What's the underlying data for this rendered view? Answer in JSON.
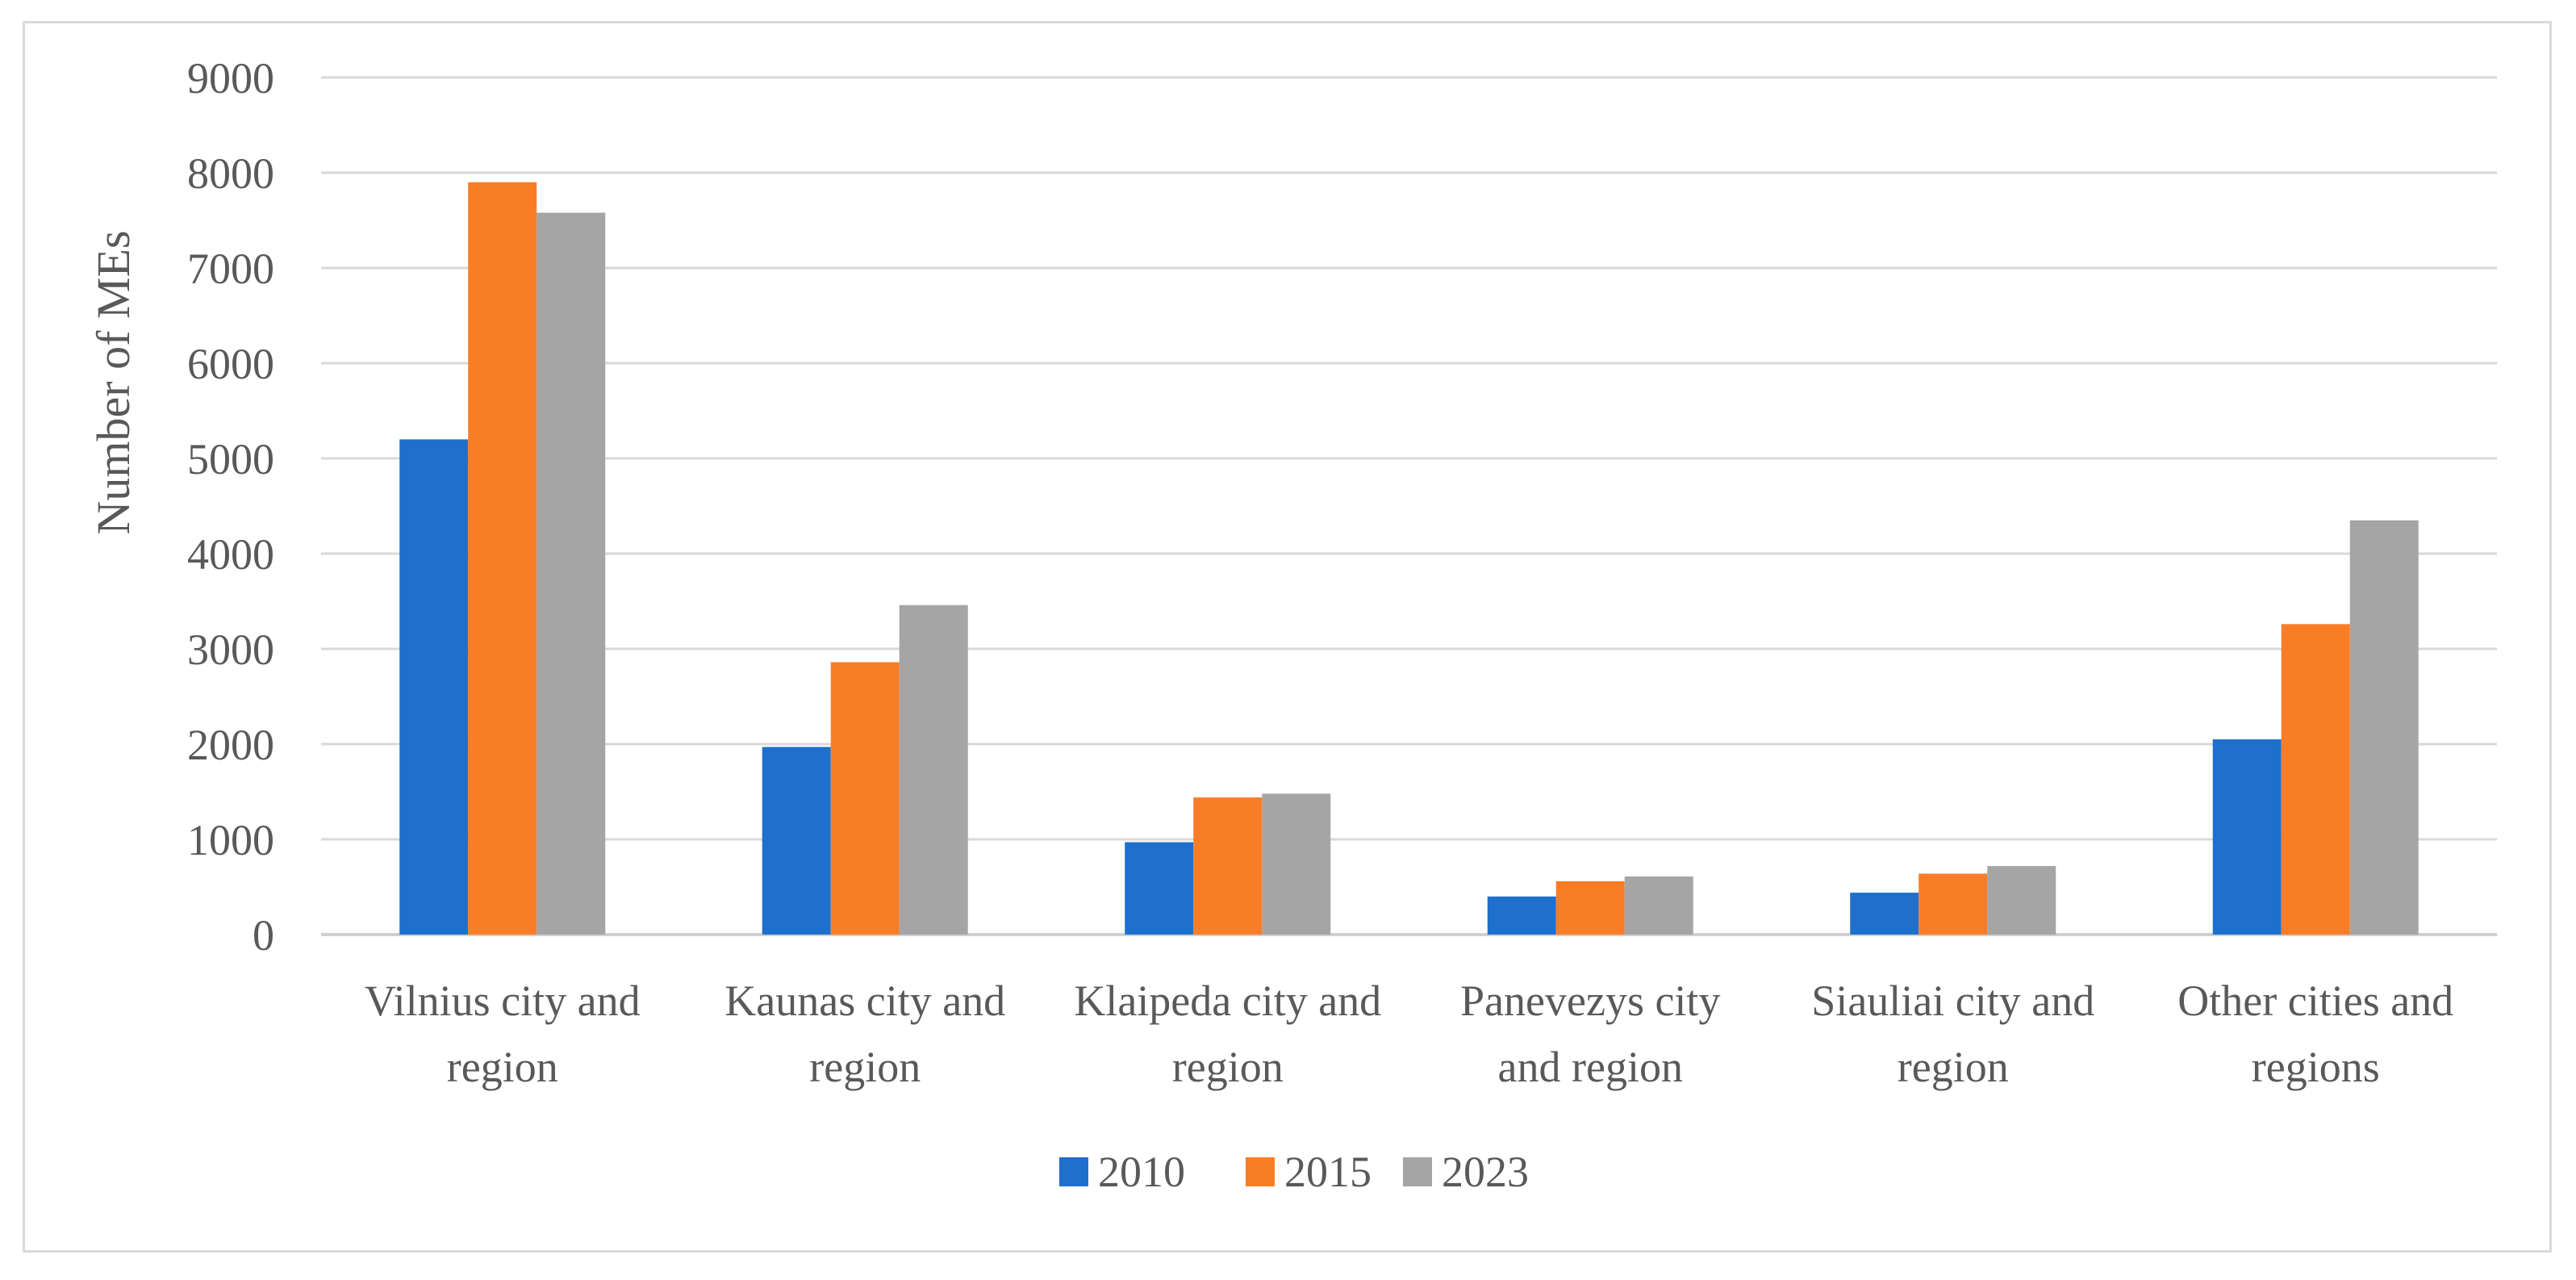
{
  "chart_data": {
    "type": "bar",
    "title": "",
    "xlabel": "",
    "ylabel": "Number of MEs",
    "ylim": [
      0,
      9000
    ],
    "ytick_step": 1000,
    "grid": true,
    "legend_position": "bottom",
    "categories": [
      [
        "Vilnius city and",
        "region"
      ],
      [
        "Kaunas city and",
        "region"
      ],
      [
        "Klaipeda city and",
        "region"
      ],
      [
        "Panevezys city",
        "and region"
      ],
      [
        "Siauliai city and",
        "region"
      ],
      [
        "Other cities and",
        "regions"
      ]
    ],
    "series": [
      {
        "name": "2010",
        "color": "#1f6fcc",
        "values": [
          5200,
          1970,
          970,
          400,
          440,
          2050
        ]
      },
      {
        "name": "2015",
        "color": "#f97d26",
        "values": [
          7900,
          2860,
          1440,
          560,
          640,
          3260
        ]
      },
      {
        "name": "2023",
        "color": "#a5a5a5",
        "values": [
          7580,
          3460,
          1480,
          610,
          720,
          4350
        ]
      }
    ]
  }
}
